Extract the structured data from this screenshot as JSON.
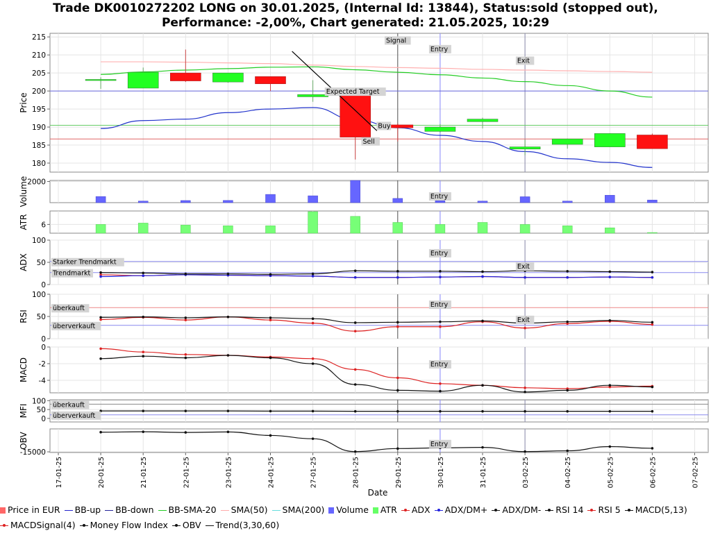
{
  "title_line1": "Trade DK0010272202 LONG on 30.01.2025, (Internal Id: 13844), Status:sold (stopped out),",
  "title_line2": "Performance: -2,00%, Chart generated: 21.05.2025, 10:29",
  "chart_data": {
    "type": "candlestick",
    "xlabel": "Date",
    "dates": [
      "17-01-25",
      "20-01-25",
      "21-01-25",
      "22-01-25",
      "23-01-25",
      "24-01-25",
      "27-01-25",
      "28-01-25",
      "29-01-25",
      "30-01-25",
      "31-01-25",
      "03-02-25",
      "04-02-25",
      "05-02-25",
      "06-02-25",
      "07-02-25"
    ],
    "panels": {
      "price": {
        "ylabel": "Price",
        "yticks": [
          180,
          185,
          190,
          195,
          200,
          205,
          210,
          215
        ],
        "ylim": [
          177.5,
          216
        ],
        "candles": [
          {
            "date": "20-01-25",
            "open": 203.2,
            "high": 203.8,
            "low": 200.6,
            "close": 203.2
          },
          {
            "date": "21-01-25",
            "open": 200.8,
            "high": 206.5,
            "low": 200.8,
            "close": 205.2
          },
          {
            "date": "22-01-25",
            "open": 205.0,
            "high": 211.5,
            "low": 202.5,
            "close": 202.8
          },
          {
            "date": "23-01-25",
            "open": 202.5,
            "high": 205.0,
            "low": 202.3,
            "close": 205.0
          },
          {
            "date": "24-01-25",
            "open": 204.0,
            "high": 204.0,
            "low": 200.0,
            "close": 202.0
          },
          {
            "date": "27-01-25",
            "open": 198.4,
            "high": 203.0,
            "low": 197.0,
            "close": 199.0
          },
          {
            "date": "28-01-25",
            "open": 200.2,
            "high": 200.5,
            "low": 181.0,
            "close": 187.2
          },
          {
            "date": "29-01-25",
            "open": 190.6,
            "high": 191.0,
            "low": 186.0,
            "close": 189.8
          },
          {
            "date": "30-01-25",
            "open": 188.8,
            "high": 190.8,
            "low": 188.5,
            "close": 190.0
          },
          {
            "date": "31-01-25",
            "open": 191.5,
            "high": 192.6,
            "low": 189.6,
            "close": 192.2
          },
          {
            "date": "03-02-25",
            "open": 183.9,
            "high": 186.5,
            "low": 182.2,
            "close": 184.5
          },
          {
            "date": "04-02-25",
            "open": 185.2,
            "high": 186.8,
            "low": 184.0,
            "close": 186.7
          },
          {
            "date": "05-02-25",
            "open": 184.5,
            "high": 188.3,
            "low": 184.5,
            "close": 188.2
          },
          {
            "date": "06-02-25",
            "open": 187.8,
            "high": 188.2,
            "low": 184.0,
            "close": 184.0
          }
        ],
        "bb_up": [
          204.6,
          205.3,
          205.8,
          206.2,
          206.6,
          206.7,
          205.9,
          205.2,
          204.5,
          203.6,
          202.6,
          201.5,
          200.0,
          198.3
        ],
        "bb_down": [
          189.6,
          191.8,
          192.2,
          194.0,
          195.0,
          195.4,
          192.0,
          189.8,
          187.7,
          186.0,
          183.2,
          181.2,
          180.2,
          178.8
        ],
        "sma50": [
          208.1,
          208.1,
          208.0,
          207.8,
          207.6,
          207.2,
          206.8,
          206.5,
          206.3,
          206.0,
          205.8,
          205.6,
          205.4,
          205.2
        ],
        "hlines": [
          {
            "value": 200.0,
            "color": "#6666dd"
          },
          {
            "value": 190.5,
            "color": "#66cc66"
          },
          {
            "value": 186.7,
            "color": "#e06666"
          }
        ],
        "trend_line": {
          "from": [
            "27-01-25",
            211
          ],
          "to": [
            "29-01-25",
            189
          ]
        },
        "annotations": [
          {
            "text": "Signal",
            "date": "29-01-25",
            "value": 214.2
          },
          {
            "text": "Entry",
            "date": "30-01-25",
            "value": 211.8
          },
          {
            "text": "Exit",
            "date": "03-02-25",
            "value": 208.6
          },
          {
            "text": "Expected Target",
            "date": "28-01-25",
            "value": 200.0
          },
          {
            "text": "Buy",
            "date": "29-01-25",
            "value": 190.5
          },
          {
            "text": "Sell",
            "date": "28-01-25",
            "value": 186.2
          }
        ]
      },
      "volume": {
        "ylabel": "Volume",
        "yticks": [
          2000
        ],
        "ylim": [
          0,
          2100
        ],
        "values": [
          580,
          150,
          200,
          210,
          780,
          650,
          2100,
          400,
          180,
          150,
          560,
          150,
          700,
          250
        ],
        "annotations": [
          {
            "text": "Entry",
            "date": "30-01-25"
          }
        ]
      },
      "atr": {
        "ylabel": "ATR",
        "yticks": [
          6
        ],
        "ylim": [
          4.7,
          8.0
        ],
        "values": [
          6.0,
          6.2,
          5.9,
          5.8,
          5.8,
          7.9,
          7.2,
          6.3,
          6.0,
          6.3,
          6.0,
          5.8,
          5.5,
          4.8
        ]
      },
      "adx": {
        "ylabel": "ADX",
        "yticks": [
          0,
          50,
          100
        ],
        "ylim": [
          0,
          100
        ],
        "adx": [
          27,
          26,
          24,
          24,
          23,
          24,
          31,
          30,
          30,
          29,
          31,
          30,
          29,
          28
        ],
        "dm_plus": [
          18,
          20,
          22,
          21,
          20,
          19,
          16,
          16,
          17,
          18,
          16,
          16,
          17,
          16
        ],
        "dm_minus": [
          22,
          20,
          22,
          21,
          20,
          19,
          16,
          16,
          17,
          18,
          16,
          16,
          17,
          16
        ],
        "hlines": [
          {
            "value": 52,
            "color": "#8888ee"
          },
          {
            "value": 27,
            "color": "#8888ee"
          }
        ],
        "labels": [
          {
            "text": "Starker Trendmarkt",
            "value": 52
          },
          {
            "text": "Trendmarkt",
            "value": 27
          }
        ],
        "annotations": [
          {
            "text": "Entry",
            "date": "30-01-25",
            "value": 72
          },
          {
            "text": "Exit",
            "date": "03-02-25",
            "value": 42
          }
        ]
      },
      "rsi": {
        "ylabel": "RSI",
        "yticks": [
          0,
          50,
          100
        ],
        "ylim": [
          0,
          100
        ],
        "rsi14": [
          48,
          49,
          47,
          49,
          47,
          45,
          36,
          37,
          38,
          40,
          35,
          38,
          41,
          37
        ],
        "rsi5": [
          43,
          48,
          42,
          49,
          42,
          35,
          17,
          27,
          27,
          38,
          24,
          34,
          39,
          32
        ],
        "hlines": [
          {
            "value": 70,
            "color": "#ee8888"
          },
          {
            "value": 30,
            "color": "#8888ee"
          }
        ],
        "labels": [
          {
            "text": "überkauft",
            "value": 70
          },
          {
            "text": "überverkauft",
            "value": 30
          }
        ],
        "annotations": [
          {
            "text": "Entry",
            "date": "30-01-25",
            "value": 78
          },
          {
            "text": "Exit",
            "date": "03-02-25",
            "value": 44
          }
        ]
      },
      "macd": {
        "ylabel": "MACD",
        "yticks": [
          0,
          -2,
          -4
        ],
        "ylim": [
          -5.5,
          0
        ],
        "macd": [
          -1.4,
          -1.1,
          -1.3,
          -1.0,
          -1.3,
          -2.0,
          -4.5,
          -5.2,
          -5.3,
          -4.6,
          -5.4,
          -5.2,
          -4.6,
          -4.8
        ],
        "signal": [
          -0.2,
          -0.6,
          -0.9,
          -1.0,
          -1.2,
          -1.4,
          -2.7,
          -3.7,
          -4.4,
          -4.6,
          -4.9,
          -5.0,
          -4.8,
          -4.7
        ],
        "annotations": [
          {
            "text": "Entry",
            "date": "30-01-25",
            "value": -2.0
          }
        ]
      },
      "mfi": {
        "ylabel": "MFI",
        "yticks": [
          0,
          50,
          100
        ],
        "ylim": [
          -20,
          105
        ],
        "values": [
          42,
          42,
          42,
          42,
          41,
          41,
          40,
          40,
          40,
          40,
          40,
          40,
          40,
          40
        ],
        "hlines": [
          {
            "value": 80,
            "color": "#888888"
          },
          {
            "value": 20,
            "color": "#8888ee"
          }
        ],
        "labels": [
          {
            "text": "überkauft",
            "value": 80
          },
          {
            "text": "überverkauft",
            "value": 20
          }
        ]
      },
      "obv": {
        "ylabel": "OBV",
        "yticks": [
          -15000
        ],
        "ylim": [
          -15500,
          2500
        ],
        "values": [
          0,
          300,
          -200,
          200,
          -2500,
          -5000,
          -14800,
          -12500,
          -12000,
          -11600,
          -14800,
          -14200,
          -11000,
          -12300
        ],
        "annotations": [
          {
            "text": "Entry",
            "date": "30-01-25",
            "value": -8500
          }
        ]
      }
    },
    "vlines": [
      {
        "date": "29-01-25",
        "color": "#555555"
      },
      {
        "date": "30-01-25",
        "color": "#8888ff"
      },
      {
        "date": "03-02-25",
        "color": "#8888aa"
      }
    ],
    "legend": [
      {
        "label": "Price in EUR",
        "color": "#ff6666",
        "kind": "box"
      },
      {
        "label": "BB-up",
        "color": "#2222cc",
        "kind": "line"
      },
      {
        "label": "BB-down",
        "color": "#222299",
        "kind": "line"
      },
      {
        "label": "BB-SMA-20",
        "color": "#22cc22",
        "kind": "line"
      },
      {
        "label": "SMA(50)",
        "color": "#ffaaaa",
        "kind": "line"
      },
      {
        "label": "SMA(200)",
        "color": "#66dddd",
        "kind": "line"
      },
      {
        "label": "Volume",
        "color": "#6666ff",
        "kind": "box"
      },
      {
        "label": "ATR",
        "color": "#66ff66",
        "kind": "box"
      },
      {
        "label": "ADX",
        "color": "#dd2222",
        "kind": "dotline"
      },
      {
        "label": "ADX/DM+",
        "color": "#2222dd",
        "kind": "dotline"
      },
      {
        "label": "ADX/DM-",
        "color": "#111111",
        "kind": "dotline"
      },
      {
        "label": "RSI 14",
        "color": "#111111",
        "kind": "dotline"
      },
      {
        "label": "RSI 5",
        "color": "#dd2222",
        "kind": "dotline"
      },
      {
        "label": "MACD(5,13)",
        "color": "#111111",
        "kind": "dotline"
      },
      {
        "label": "MACDSignal(4)",
        "color": "#dd2222",
        "kind": "dotline"
      },
      {
        "label": "Money Flow Index",
        "color": "#111111",
        "kind": "dotline"
      },
      {
        "label": "OBV",
        "color": "#111111",
        "kind": "dotline"
      },
      {
        "label": "Trend(3,30,60)",
        "color": "#111111",
        "kind": "line"
      }
    ]
  }
}
